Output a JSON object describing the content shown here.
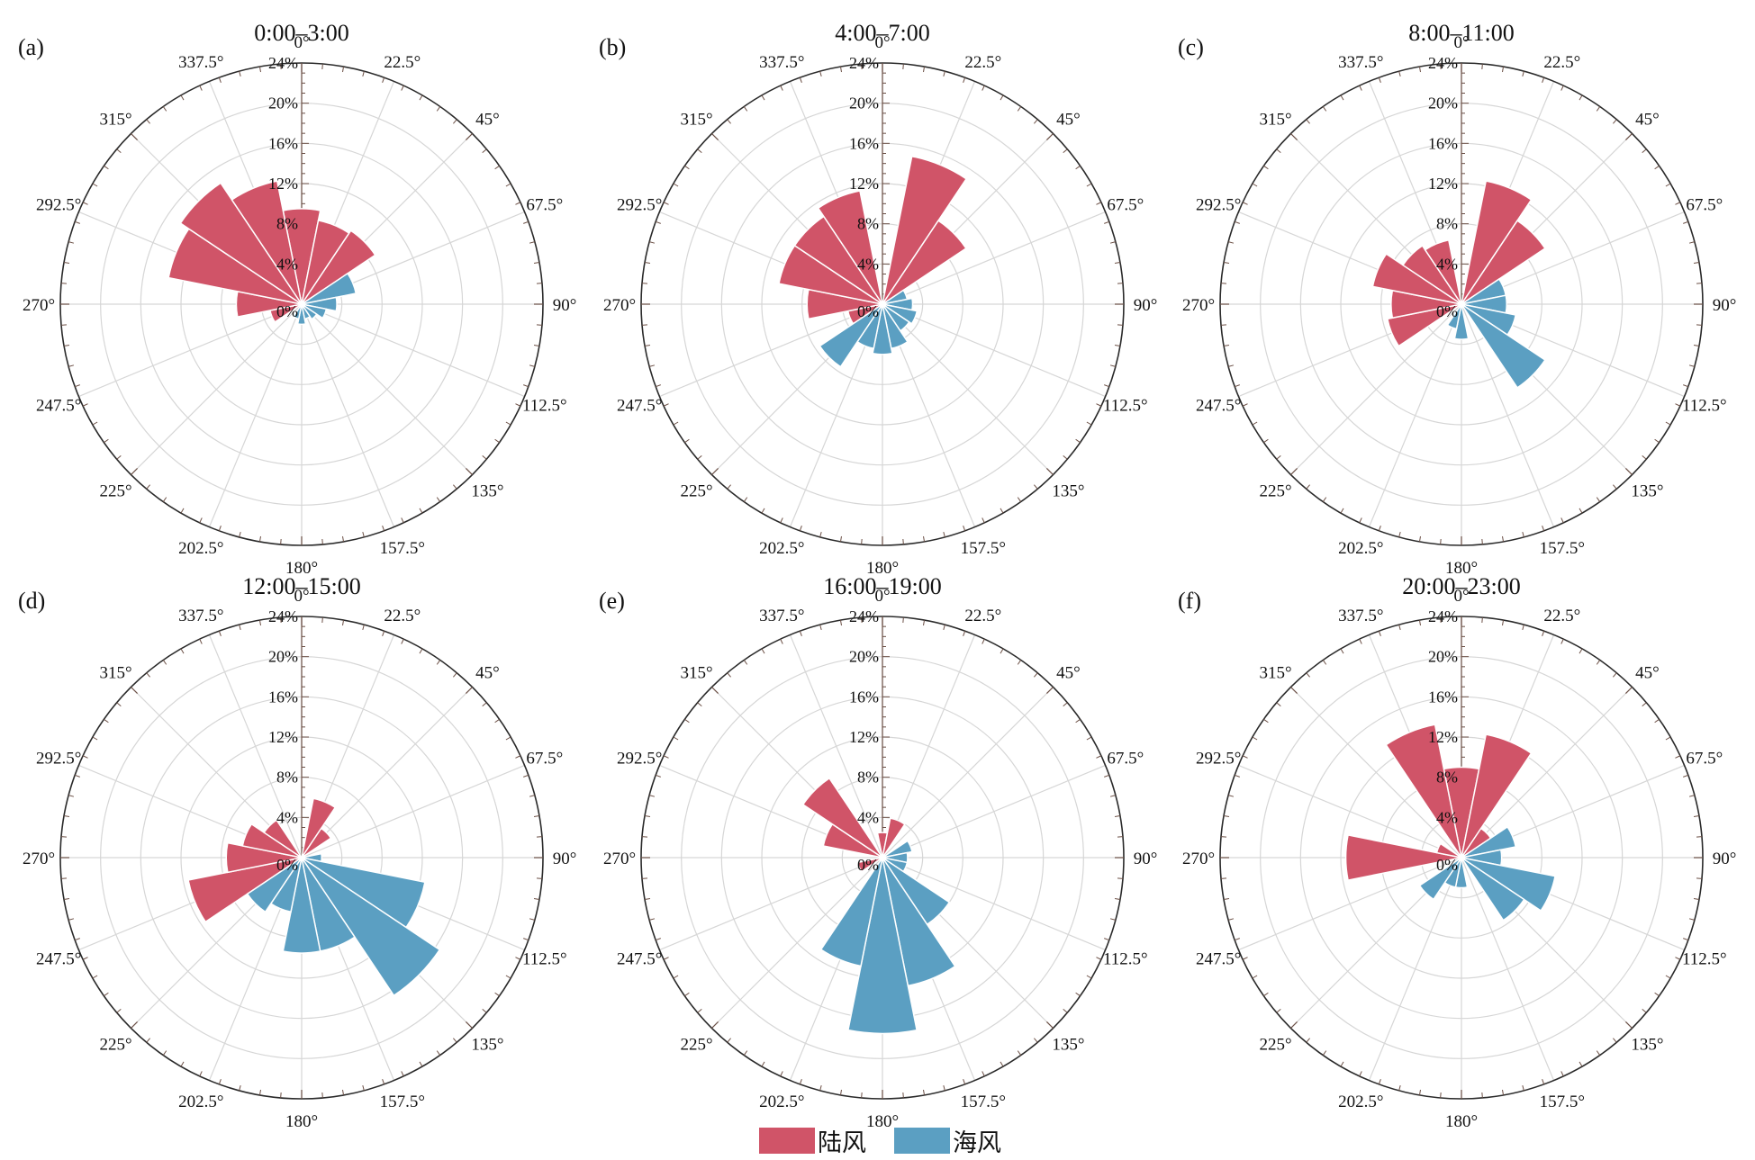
{
  "legend": [
    {
      "name": "陆风",
      "color": "#d05468"
    },
    {
      "name": "海风",
      "color": "#5b9fc2"
    }
  ],
  "chart_data": [
    {
      "type": "bar",
      "panel": "(a)",
      "title": "0:00–3:00",
      "direction_labels": [
        "0°",
        "22.5°",
        "45°",
        "67.5°",
        "90°",
        "112.5°",
        "135°",
        "157.5°",
        "180°",
        "202.5°",
        "225°",
        "247.5°",
        "270°",
        "292.5°",
        "315°",
        "337.5°"
      ],
      "radial_ticks": [
        "0%",
        "4%",
        "8%",
        "12%",
        "16%",
        "20%",
        "24%"
      ],
      "rlim": [
        0,
        24
      ],
      "categories": [
        0,
        22.5,
        45,
        67.5,
        90,
        112.5,
        135,
        157.5,
        180,
        202.5,
        225,
        247.5,
        270,
        292.5,
        315,
        337.5
      ],
      "series": [
        {
          "name": "陆风",
          "values": [
            9.5,
            8.5,
            8.8,
            0,
            0,
            0,
            0,
            0,
            0,
            0,
            0,
            3.2,
            6.5,
            13.5,
            14.5,
            12.5
          ]
        },
        {
          "name": "海风",
          "values": [
            0,
            0,
            0,
            5.5,
            3.5,
            2.5,
            1.8,
            1.5,
            2.0,
            1.5,
            0,
            0,
            0,
            0,
            0,
            0
          ]
        }
      ]
    },
    {
      "type": "bar",
      "panel": "(b)",
      "title": "4:00–7:00",
      "direction_labels": [
        "0°",
        "22.5°",
        "45°",
        "67.5°",
        "90°",
        "112.5°",
        "135°",
        "157.5°",
        "180°",
        "202.5°",
        "225°",
        "247.5°",
        "270°",
        "292.5°",
        "315°",
        "337.5°"
      ],
      "radial_ticks": [
        "0%",
        "4%",
        "8%",
        "12%",
        "16%",
        "20%",
        "24%"
      ],
      "rlim": [
        0,
        24
      ],
      "categories": [
        0,
        22.5,
        45,
        67.5,
        90,
        112.5,
        135,
        157.5,
        180,
        202.5,
        225,
        247.5,
        270,
        292.5,
        315,
        337.5
      ],
      "series": [
        {
          "name": "陆风",
          "values": [
            0,
            15.0,
            10.0,
            0,
            0,
            0,
            0,
            0,
            0,
            0,
            0,
            3.5,
            7.5,
            10.5,
            10.5,
            11.5
          ]
        },
        {
          "name": "海风",
          "values": [
            0,
            0,
            0,
            2.5,
            3.0,
            3.5,
            3.2,
            4.5,
            5.0,
            4.5,
            7.5,
            0,
            0,
            0,
            0,
            0
          ]
        }
      ]
    },
    {
      "type": "bar",
      "panel": "(c)",
      "title": "8:00–11:00",
      "direction_labels": [
        "0°",
        "22.5°",
        "45°",
        "67.5°",
        "90°",
        "112.5°",
        "135°",
        "157.5°",
        "180°",
        "202.5°",
        "225°",
        "247.5°",
        "270°",
        "292.5°",
        "315°",
        "337.5°"
      ],
      "radial_ticks": [
        "0%",
        "4%",
        "8%",
        "12%",
        "16%",
        "20%",
        "24%"
      ],
      "rlim": [
        0,
        24
      ],
      "categories": [
        0,
        22.5,
        45,
        67.5,
        90,
        112.5,
        135,
        157.5,
        180,
        202.5,
        225,
        247.5,
        270,
        292.5,
        315,
        337.5
      ],
      "series": [
        {
          "name": "陆风",
          "values": [
            0,
            12.5,
            10.0,
            0,
            0,
            0,
            0,
            0,
            0,
            0,
            0,
            7.5,
            7.0,
            9.0,
            7.0,
            6.5
          ]
        },
        {
          "name": "海风",
          "values": [
            0,
            0,
            0,
            4.5,
            4.5,
            5.5,
            10.0,
            0,
            3.5,
            2.5,
            0,
            0,
            0,
            0,
            0,
            0
          ]
        }
      ]
    },
    {
      "type": "bar",
      "panel": "(d)",
      "title": "12:00–15:00",
      "direction_labels": [
        "0°",
        "22.5°",
        "45°",
        "67.5°",
        "90°",
        "112.5°",
        "135°",
        "157.5°",
        "180°",
        "202.5°",
        "225°",
        "247.5°",
        "270°",
        "292.5°",
        "315°",
        "337.5°"
      ],
      "radial_ticks": [
        "0%",
        "4%",
        "8%",
        "12%",
        "16%",
        "20%",
        "24%"
      ],
      "rlim": [
        0,
        24
      ],
      "categories": [
        0,
        22.5,
        45,
        67.5,
        90,
        112.5,
        135,
        157.5,
        180,
        202.5,
        225,
        247.5,
        270,
        292.5,
        315,
        337.5
      ],
      "series": [
        {
          "name": "陆风",
          "values": [
            0,
            6.0,
            3.5,
            0,
            0,
            0,
            0,
            0,
            0,
            0,
            0,
            11.5,
            7.5,
            6.0,
            4.5,
            0
          ]
        },
        {
          "name": "海风",
          "values": [
            0,
            0,
            0,
            0,
            2.0,
            12.5,
            16.5,
            9.5,
            9.5,
            5.5,
            6.5,
            0,
            0,
            0,
            0,
            0
          ]
        }
      ]
    },
    {
      "type": "bar",
      "panel": "(e)",
      "title": "16:00–19:00",
      "direction_labels": [
        "0°",
        "22.5°",
        "45°",
        "67.5°",
        "90°",
        "112.5°",
        "135°",
        "157.5°",
        "180°",
        "202.5°",
        "225°",
        "247.5°",
        "270°",
        "292.5°",
        "315°",
        "337.5°"
      ],
      "radial_ticks": [
        "0%",
        "4%",
        "8%",
        "12%",
        "16%",
        "20%",
        "24%"
      ],
      "rlim": [
        0,
        24
      ],
      "categories": [
        0,
        22.5,
        45,
        67.5,
        90,
        112.5,
        135,
        157.5,
        180,
        202.5,
        225,
        247.5,
        270,
        292.5,
        315,
        337.5
      ],
      "series": [
        {
          "name": "陆风",
          "values": [
            2.5,
            4.0,
            0,
            0,
            0,
            0,
            0,
            0,
            0,
            0,
            0,
            2.5,
            0,
            6.0,
            9.5,
            0
          ]
        },
        {
          "name": "海风",
          "values": [
            0,
            0,
            0,
            3.0,
            2.5,
            2.5,
            8.0,
            13.0,
            17.5,
            11.0,
            0,
            0,
            0,
            0,
            0,
            0
          ]
        }
      ]
    },
    {
      "type": "bar",
      "panel": "(f)",
      "title": "20:00–23:00",
      "direction_labels": [
        "0°",
        "22.5°",
        "45°",
        "67.5°",
        "90°",
        "112.5°",
        "135°",
        "157.5°",
        "180°",
        "202.5°",
        "225°",
        "247.5°",
        "270°",
        "292.5°",
        "315°",
        "337.5°"
      ],
      "radial_ticks": [
        "0%",
        "4%",
        "8%",
        "12%",
        "16%",
        "20%",
        "24%"
      ],
      "rlim": [
        0,
        24
      ],
      "categories": [
        0,
        22.5,
        45,
        67.5,
        90,
        112.5,
        135,
        157.5,
        180,
        202.5,
        225,
        247.5,
        270,
        292.5,
        315,
        337.5
      ],
      "series": [
        {
          "name": "陆风",
          "values": [
            9.0,
            12.5,
            3.5,
            0,
            0,
            0,
            0,
            0,
            0,
            0,
            0,
            0,
            11.5,
            2.5,
            0,
            13.5
          ]
        },
        {
          "name": "海风",
          "values": [
            0,
            0,
            0,
            5.5,
            4.0,
            9.5,
            7.5,
            0,
            3.0,
            3.0,
            5.0,
            0,
            0,
            0,
            0,
            0
          ]
        }
      ]
    }
  ]
}
